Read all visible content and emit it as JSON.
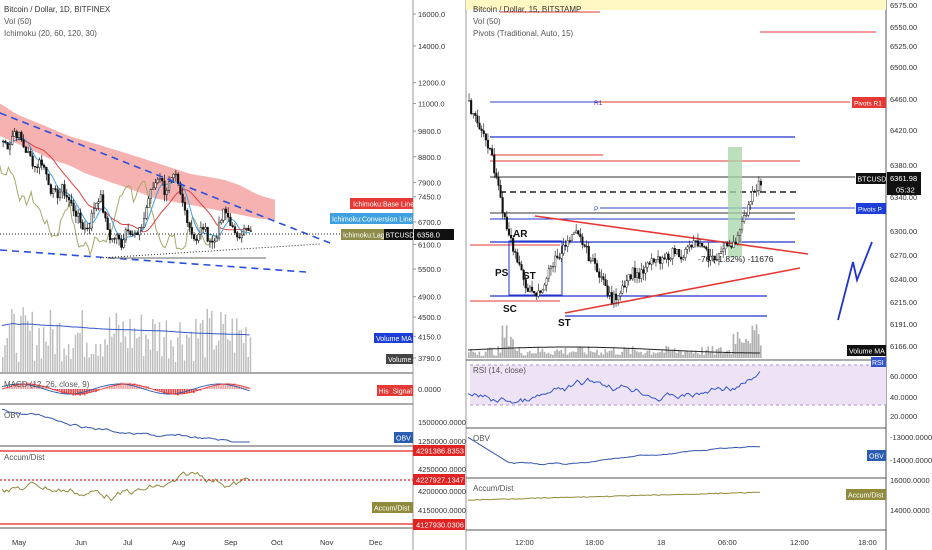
{
  "left": {
    "title": "Bitcoin / Dollar, 1D, BITFINEX",
    "indicators": [
      "Vol (50)",
      "Ichimoku (20, 60, 120, 30)"
    ],
    "price_ticks": [
      "16000.0",
      "14000.0",
      "12000.0",
      "11000.0",
      "9800.0",
      "8800.0",
      "7900.0",
      "7450.0",
      "6700.0",
      "6100.0",
      "5500.0",
      "4900.0",
      "4500.0",
      "4150.0",
      "3790.0"
    ],
    "x_ticks": [
      "May",
      "Jun",
      "Jul",
      "Aug",
      "Sep",
      "Oct",
      "Nov",
      "Dec"
    ],
    "tags": {
      "base_line": "Ichimoku:Base Line",
      "conversion_line": "Ichimoku:Conversion Line",
      "lagging": "Ichimoku:Lagi",
      "btcusd": "BTCUSD",
      "price": "6358.0",
      "volume_ma": "Volume MA",
      "volume": "Volume",
      "hist": "His",
      "signal": "Signal",
      "obv": "OBV",
      "accum": "Accum/Dist"
    },
    "macd": {
      "label": "MACD (12, 26, close, 9)",
      "tick": "0.0000"
    },
    "obv": {
      "label": "OBV",
      "ticks": [
        "1500000.0000",
        "1250000.0000"
      ]
    },
    "accum": {
      "label": "Accum/Dist",
      "ticks": [
        "4250000.0000",
        "4200000.0000",
        "4150000.0000"
      ],
      "red_top": "4291386.8353",
      "red_mid": "4227927.1347",
      "red_bottom": "4127930.0306"
    }
  },
  "right": {
    "title": "Bitcoin / Dollar, 15, BITSTAMP",
    "indicators": [
      "Vol (50)",
      "Pivots (Traditional, Auto, 15)"
    ],
    "price_ticks": [
      "6575.00",
      "6550.00",
      "6525.00",
      "6500.00",
      "6460.00",
      "6420.00",
      "6380.00",
      "6340.00",
      "6300.00",
      "6270.00",
      "6240.00",
      "6215.00",
      "6191.00",
      "6166.00"
    ],
    "x_ticks": [
      "12:00",
      "18:00",
      "18",
      "06:00",
      "12:00",
      "18:00"
    ],
    "pivot_r1": "R1",
    "pivot_p": "P",
    "tags": {
      "pivots_r1": "Pivots R1",
      "btcusd": "BTCUSD",
      "price": "6361.98",
      "countdown": "05:32",
      "pivots_p": "Pivots P",
      "volume_ma": "Volume MA",
      "rsi": "RSI",
      "obv": "OBV",
      "accum": "Accum/Dist"
    },
    "wyckoff": {
      "ar": "AR",
      "ps": "PS",
      "st1": "ST",
      "sc": "SC",
      "st2": "ST"
    },
    "measure": "-76 (-1.82%) -11676",
    "rsi": {
      "label": "RSI (14, close)",
      "ticks": [
        "60.0000",
        "40.0000",
        "20.0000"
      ]
    },
    "obv": {
      "label": "OBV",
      "ticks": [
        "-13000.0000",
        "-14000.0000"
      ]
    },
    "accum": {
      "label": "Accum/Dist",
      "ticks": [
        "16000.0000",
        "14000.0000"
      ]
    }
  },
  "chart_data": [
    {
      "type": "candlestick",
      "title": "Bitcoin / Dollar, 1D, BITFINEX",
      "x_range": [
        "May",
        "Dec"
      ],
      "ylim": [
        3790,
        16000
      ],
      "y_scale": "log",
      "close_series": [
        9400,
        9200,
        9800,
        9600,
        9100,
        8800,
        8400,
        8700,
        8200,
        7600,
        7500,
        7700,
        7400,
        7100,
        6800,
        6500,
        6600,
        7200,
        7500,
        6700,
        6200,
        6300,
        6100,
        6600,
        6400,
        6300,
        6700,
        7400,
        7800,
        8200,
        7600,
        7900,
        8100,
        7400,
        6900,
        6400,
        6200,
        6600,
        6300,
        6100,
        6500,
        7000,
        6800,
        6300,
        6400,
        6500,
        6358
      ],
      "ichimoku_cloud": {
        "upper": [
          11000,
          10500,
          10200,
          9900,
          9600,
          9400,
          9200,
          9000,
          8800,
          8600,
          8400,
          8200,
          8100,
          8000,
          7800,
          7500,
          7350
        ],
        "lower": [
          9600,
          9300,
          9000,
          8700,
          8500,
          8200,
          8000,
          7800,
          7600,
          7400,
          7300,
          7200,
          7100,
          7000,
          6900,
          6800,
          6750
        ]
      },
      "last_price": 6358.0
    },
    {
      "type": "candlestick",
      "title": "Bitcoin / Dollar, 15, BITSTAMP",
      "x_range": [
        "12:00",
        "18:00"
      ],
      "ylim": [
        6166,
        6575
      ],
      "close_series": [
        6455,
        6440,
        6420,
        6400,
        6360,
        6320,
        6290,
        6260,
        6240,
        6225,
        6230,
        6250,
        6270,
        6280,
        6290,
        6300,
        6290,
        6270,
        6260,
        6240,
        6220,
        6230,
        6245,
        6255,
        6250,
        6260,
        6270,
        6265,
        6275,
        6280,
        6275,
        6285,
        6290,
        6280,
        6270,
        6275,
        6285,
        6290,
        6300,
        6330,
        6355,
        6362
      ],
      "pivots": {
        "R1": 6460,
        "P": 6338
      },
      "last_price": 6361.98
    }
  ]
}
